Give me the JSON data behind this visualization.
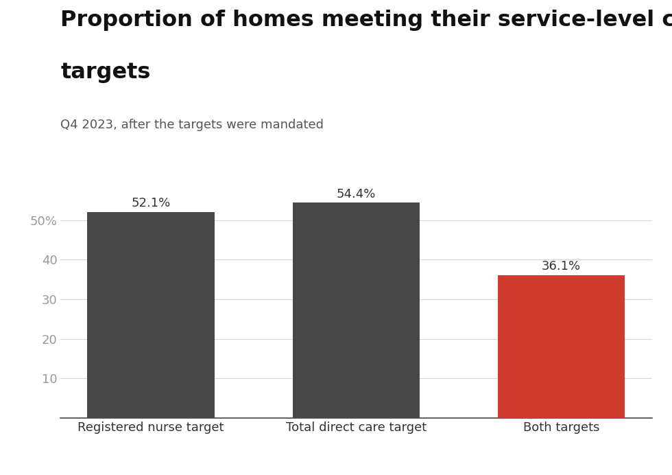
{
  "categories": [
    "Registered nurse target",
    "Total direct care target",
    "Both targets"
  ],
  "values": [
    52.1,
    54.4,
    36.1
  ],
  "bar_colors": [
    "#474747",
    "#474747",
    "#d03b2f"
  ],
  "bar_labels": [
    "52.1%",
    "54.4%",
    "36.1%"
  ],
  "title_line1": "Proportion of homes meeting their service-level care minute",
  "title_line2": "targets",
  "subtitle": "Q4 2023, after the targets were mandated",
  "ytick_labels": [
    "10",
    "20",
    "30",
    "40",
    "50%"
  ],
  "ytick_values": [
    10,
    20,
    30,
    40,
    50
  ],
  "ylim": [
    0,
    60
  ],
  "title_fontsize": 23,
  "subtitle_fontsize": 13,
  "label_fontsize": 13,
  "tick_fontsize": 13,
  "background_color": "#ffffff",
  "grid_color": "#d5d5d5",
  "tick_color": "#999999",
  "xtick_color": "#333333"
}
